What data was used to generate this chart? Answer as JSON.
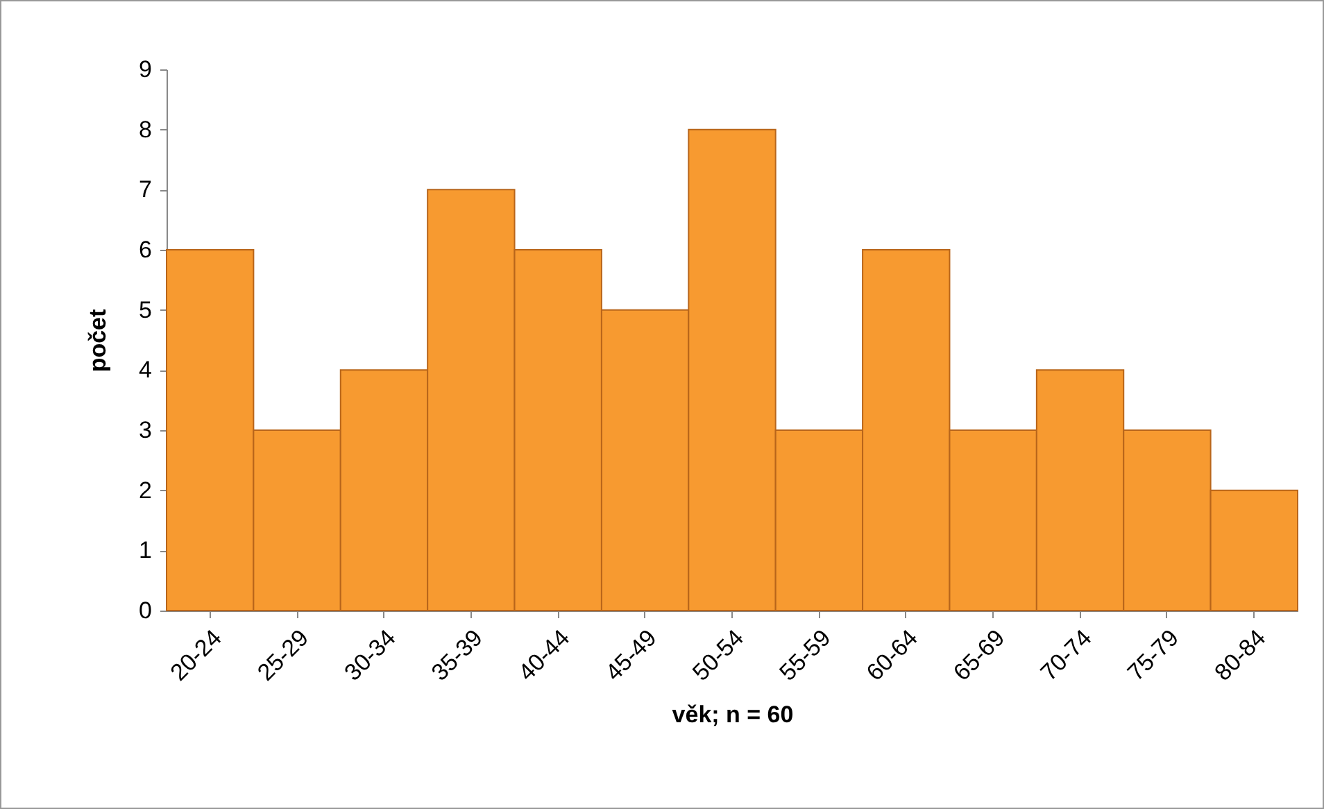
{
  "chart_data": {
    "type": "bar",
    "xlabel": "věk; n = 60",
    "ylabel": "počet",
    "categories": [
      "20-24",
      "25-29",
      "30-34",
      "35-39",
      "40-44",
      "45-49",
      "50-54",
      "55-59",
      "60-64",
      "65-69",
      "70-74",
      "75-79",
      "80-84"
    ],
    "values": [
      6,
      3,
      4,
      7,
      6,
      5,
      8,
      3,
      6,
      3,
      4,
      3,
      2
    ],
    "color": "#f79a30",
    "ylim": [
      0,
      9
    ],
    "yticks": [
      0,
      1,
      2,
      3,
      4,
      5,
      6,
      7,
      8,
      9
    ],
    "grid": false
  }
}
